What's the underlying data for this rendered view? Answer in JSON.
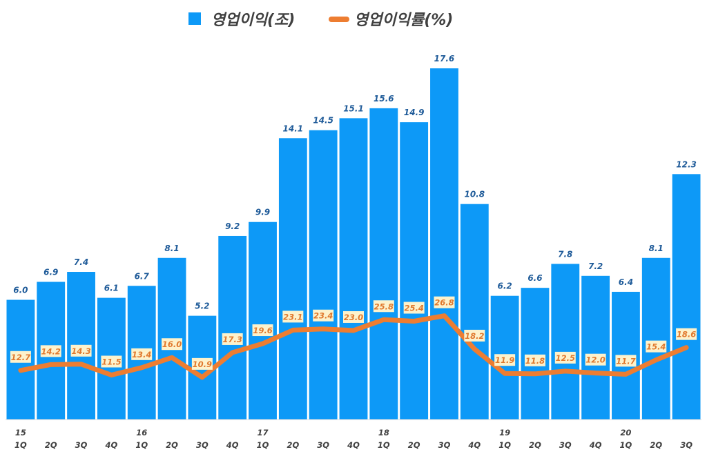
{
  "colors": {
    "bar": "#0d99f7",
    "line": "#ed7d31",
    "label_bg": "#fdf2cc",
    "bar_label": "#1f5b99",
    "line_label": "#e0782d"
  },
  "chart_data": {
    "type": "bar",
    "title": "",
    "xlabel": "",
    "ylabel": "",
    "legend": {
      "position": "top-center",
      "bar_name": "영업이익(조)",
      "line_name": "영업이익률(%)"
    },
    "categories": [
      "15 1Q",
      "2Q",
      "3Q",
      "4Q",
      "16 1Q",
      "2Q",
      "3Q",
      "4Q",
      "17 1Q",
      "2Q",
      "3Q",
      "4Q",
      "18 1Q",
      "2Q",
      "3Q",
      "4Q",
      "19 1Q",
      "2Q",
      "3Q",
      "4Q",
      "20 1Q",
      "2Q",
      "3Q"
    ],
    "quarter_labels": [
      "1Q",
      "2Q",
      "3Q",
      "4Q",
      "1Q",
      "2Q",
      "3Q",
      "4Q",
      "1Q",
      "2Q",
      "3Q",
      "4Q",
      "1Q",
      "2Q",
      "3Q",
      "4Q",
      "1Q",
      "2Q",
      "3Q",
      "4Q",
      "1Q",
      "2Q",
      "3Q"
    ],
    "year_labels": [
      {
        "index": 0,
        "label": "15"
      },
      {
        "index": 4,
        "label": "16"
      },
      {
        "index": 8,
        "label": "17"
      },
      {
        "index": 12,
        "label": "18"
      },
      {
        "index": 16,
        "label": "19"
      },
      {
        "index": 20,
        "label": "20"
      }
    ],
    "series": [
      {
        "name": "영업이익(조)",
        "type": "bar",
        "values": [
          6.0,
          6.9,
          7.4,
          6.1,
          6.7,
          8.1,
          5.2,
          9.2,
          9.9,
          14.1,
          14.5,
          15.1,
          15.6,
          14.9,
          17.6,
          10.8,
          6.2,
          6.6,
          7.8,
          7.2,
          6.4,
          8.1,
          12.3
        ],
        "ylim": [
          0,
          19.4
        ]
      },
      {
        "name": "영업이익률(%)",
        "type": "line",
        "values": [
          12.7,
          14.2,
          14.3,
          11.5,
          13.4,
          16.0,
          10.9,
          17.3,
          19.6,
          23.1,
          23.4,
          23.0,
          25.8,
          25.4,
          26.8,
          18.2,
          11.9,
          11.8,
          12.5,
          12.0,
          11.7,
          15.4,
          18.6
        ],
        "ylim": [
          0,
          100
        ]
      }
    ]
  }
}
